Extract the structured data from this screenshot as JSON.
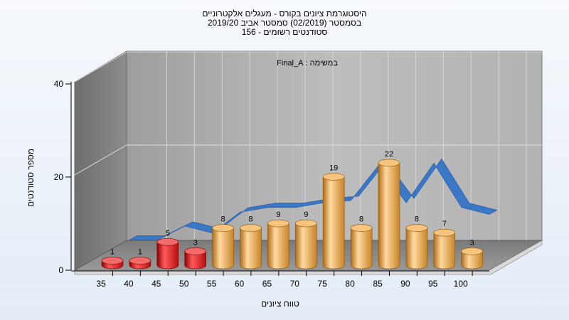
{
  "chart_data": {
    "type": "bar",
    "title": [
      "היסטוגרמת ציונים בקורס - מעגלים אלקטרוניים",
      "בסמסטר  (02/2019)  סמסטר אביב 2019/20",
      "סטודנטים רשומים - 156"
    ],
    "annotation": "במשימה : Final_A",
    "xlabel": "טווח ציונים",
    "ylabel": "מספר סטודנטים",
    "ylim": [
      0,
      40
    ],
    "yticks": [
      0,
      20,
      40
    ],
    "categories": [
      "35",
      "40",
      "45",
      "50",
      "55",
      "60",
      "65",
      "70",
      "75",
      "80",
      "85",
      "90",
      "95",
      "100"
    ],
    "values": [
      1,
      1,
      5,
      3,
      8,
      8,
      9,
      9,
      19,
      8,
      22,
      8,
      7,
      3
    ],
    "bar_colors": [
      "#dd1c1c",
      "#dd1c1c",
      "#dd1c1c",
      "#dd1c1c",
      "#e8a33a",
      "#e8a33a",
      "#e8a33a",
      "#e8a33a",
      "#e8a33a",
      "#e8a33a",
      "#e8a33a",
      "#e8a33a",
      "#e8a33a",
      "#e8a33a"
    ],
    "series": [
      {
        "type": "bar",
        "values": [
          1,
          1,
          5,
          3,
          8,
          8,
          9,
          9,
          19,
          8,
          22,
          8,
          7,
          3
        ]
      },
      {
        "type": "ribbon",
        "color": "#3a78c6",
        "values": [
          2.5,
          2.5,
          5.5,
          4,
          8.5,
          9.5,
          9.5,
          10.5,
          11,
          18.5,
          10.5,
          19,
          9.5,
          8
        ]
      }
    ],
    "grid": true,
    "legend": "none"
  }
}
